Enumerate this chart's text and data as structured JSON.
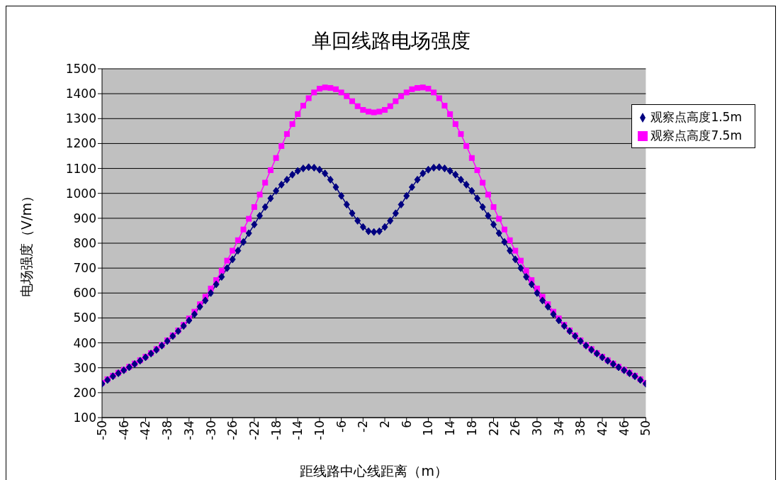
{
  "chart_data": {
    "type": "line",
    "title": "单回线路电场强度",
    "xlabel": "距线路中心线距离（m）",
    "ylabel": "电场强度（V/m）",
    "x": [
      -50,
      -49,
      -48,
      -47,
      -46,
      -45,
      -44,
      -43,
      -42,
      -41,
      -40,
      -39,
      -38,
      -37,
      -36,
      -35,
      -34,
      -33,
      -32,
      -31,
      -30,
      -29,
      -28,
      -27,
      -26,
      -25,
      -24,
      -23,
      -22,
      -21,
      -20,
      -19,
      -18,
      -17,
      -16,
      -15,
      -14,
      -13,
      -12,
      -11,
      -10,
      -9,
      -8,
      -7,
      -6,
      -5,
      -4,
      -3,
      -2,
      -1,
      0,
      1,
      2,
      3,
      4,
      5,
      6,
      7,
      8,
      9,
      10,
      11,
      12,
      13,
      14,
      15,
      16,
      17,
      18,
      19,
      20,
      21,
      22,
      23,
      24,
      25,
      26,
      27,
      28,
      29,
      30,
      31,
      32,
      33,
      34,
      35,
      36,
      37,
      38,
      39,
      40,
      41,
      42,
      43,
      44,
      45,
      46,
      47,
      48,
      49,
      50
    ],
    "series": [
      {
        "name": "观察点高度1.5m",
        "color": "#000080",
        "marker": "diamond",
        "values": [
          236,
          251,
          266,
          278,
          290,
          302,
          315,
          328,
          342,
          357,
          372,
          389,
          407,
          427,
          447,
          468,
          490,
          515,
          545,
          570,
          600,
          635,
          665,
          700,
          735,
          770,
          805,
          840,
          875,
          910,
          945,
          980,
          1010,
          1035,
          1055,
          1075,
          1090,
          1100,
          1105,
          1103,
          1095,
          1080,
          1055,
          1025,
          990,
          955,
          920,
          890,
          865,
          848,
          845,
          848,
          865,
          890,
          920,
          955,
          990,
          1025,
          1055,
          1080,
          1095,
          1103,
          1105,
          1100,
          1090,
          1075,
          1055,
          1035,
          1010,
          980,
          945,
          910,
          875,
          840,
          805,
          770,
          735,
          700,
          665,
          635,
          600,
          570,
          545,
          515,
          490,
          468,
          447,
          427,
          407,
          389,
          372,
          357,
          342,
          328,
          315,
          302,
          290,
          278,
          266,
          251,
          236
        ]
      },
      {
        "name": "观察点高度7.5m",
        "color": "#ff00ff",
        "marker": "square",
        "values": [
          240,
          254,
          268,
          280,
          292,
          304,
          317,
          330,
          344,
          359,
          375,
          391,
          410,
          430,
          450,
          472,
          498,
          525,
          555,
          585,
          618,
          652,
          690,
          730,
          770,
          812,
          855,
          898,
          945,
          995,
          1043,
          1093,
          1142,
          1190,
          1238,
          1278,
          1318,
          1352,
          1382,
          1405,
          1420,
          1425,
          1423,
          1418,
          1405,
          1390,
          1370,
          1350,
          1335,
          1328,
          1325,
          1328,
          1335,
          1350,
          1370,
          1390,
          1405,
          1418,
          1423,
          1425,
          1420,
          1405,
          1382,
          1352,
          1318,
          1278,
          1238,
          1190,
          1142,
          1093,
          1043,
          995,
          945,
          898,
          855,
          812,
          770,
          730,
          690,
          652,
          618,
          585,
          555,
          525,
          498,
          472,
          450,
          430,
          410,
          391,
          375,
          359,
          344,
          330,
          317,
          304,
          292,
          280,
          268,
          254,
          240
        ]
      }
    ],
    "xlim": [
      -50,
      50
    ],
    "xticks": [
      -50,
      -46,
      -42,
      -38,
      -34,
      -30,
      -26,
      -22,
      -18,
      -14,
      -10,
      -6,
      -2,
      2,
      6,
      10,
      14,
      18,
      22,
      26,
      30,
      34,
      38,
      42,
      46,
      50
    ],
    "ylim": [
      100,
      1500
    ],
    "yticks": [
      100,
      200,
      300,
      400,
      500,
      600,
      700,
      800,
      900,
      1000,
      1100,
      1200,
      1300,
      1400,
      1500
    ],
    "grid": "y",
    "legend": "top right",
    "line_style": "solid"
  }
}
